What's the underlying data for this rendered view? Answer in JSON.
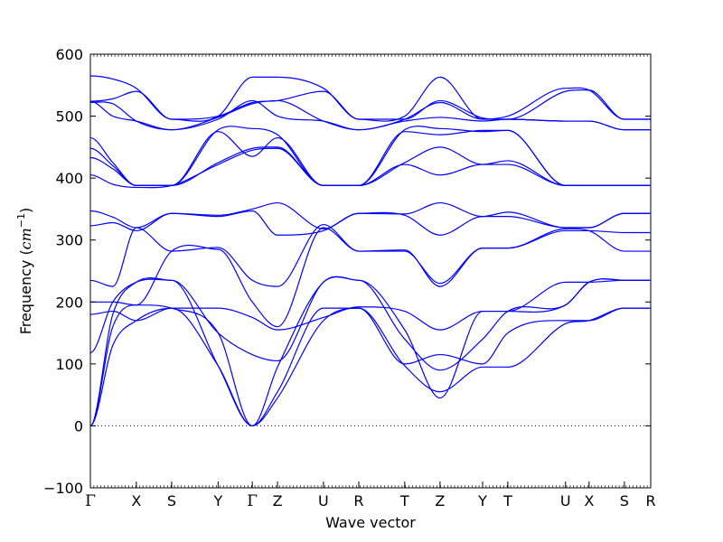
{
  "chart_data": {
    "type": "line",
    "title": "",
    "xlabel": "Wave vector",
    "ylabel_main": "Frequency (",
    "ylabel_unit": "cm",
    "ylabel_sup": "−1",
    "ylabel_close": ")",
    "ylim": [
      -100,
      600
    ],
    "yticks": [
      -100,
      0,
      100,
      200,
      300,
      400,
      500,
      600
    ],
    "xlim": [
      0,
      1
    ],
    "high_symmetry_points": [
      {
        "label": "Γ",
        "x": 0.0
      },
      {
        "label": "X",
        "x": 0.082
      },
      {
        "label": "S",
        "x": 0.145
      },
      {
        "label": "Y",
        "x": 0.228
      },
      {
        "label": "Γ",
        "x": 0.289
      },
      {
        "label": "Z",
        "x": 0.334
      },
      {
        "label": "U",
        "x": 0.416
      },
      {
        "label": "R",
        "x": 0.479
      },
      {
        "label": "T",
        "x": 0.561
      },
      {
        "label": "Z",
        "x": 0.624
      },
      {
        "label": "Y",
        "x": 0.7
      },
      {
        "label": "T",
        "x": 0.745
      },
      {
        "label": "U",
        "x": 0.848
      },
      {
        "label": "X",
        "x": 0.89
      },
      {
        "label": "S",
        "x": 0.953
      },
      {
        "label": "R",
        "x": 1.0
      }
    ],
    "zero_line": {
      "y": 0,
      "style": "dotted"
    },
    "line_color": "#0000ff",
    "series": [
      {
        "x": [
          0,
          0.04,
          0.082,
          0.145,
          0.228,
          0.289,
          0.334,
          0.416,
          0.479,
          0.561,
          0.624,
          0.7,
          0.745,
          0.848,
          0.89,
          0.953,
          1
        ],
        "y": [
          0,
          130,
          170,
          190,
          97,
          0,
          45,
          170,
          190,
          97,
          55,
          95,
          95,
          165,
          170,
          190,
          190
        ]
      },
      {
        "x": [
          0,
          0.04,
          0.082,
          0.145,
          0.228,
          0.289,
          0.334,
          0.416,
          0.479,
          0.561,
          0.624,
          0.7,
          0.745,
          0.848,
          0.89,
          0.953,
          1
        ],
        "y": [
          0,
          160,
          195,
          190,
          150,
          0,
          55,
          190,
          190,
          100,
          115,
          100,
          150,
          170,
          170,
          190,
          190
        ]
      },
      {
        "x": [
          0,
          0.04,
          0.082,
          0.145,
          0.228,
          0.289,
          0.334,
          0.416,
          0.479,
          0.561,
          0.624,
          0.7,
          0.745,
          0.848,
          0.89,
          0.953,
          1
        ],
        "y": [
          0,
          180,
          232,
          235,
          97,
          0,
          95,
          232,
          235,
          140,
          90,
          140,
          185,
          195,
          232,
          235,
          235
        ]
      },
      {
        "x": [
          0,
          0.04,
          0.082,
          0.145,
          0.228,
          0.289,
          0.334,
          0.416,
          0.479,
          0.561,
          0.624,
          0.7,
          0.745,
          0.848,
          0.89,
          0.953,
          1
        ],
        "y": [
          118,
          200,
          232,
          235,
          150,
          115,
          105,
          232,
          235,
          155,
          45,
          185,
          185,
          232,
          232,
          235,
          235
        ]
      },
      {
        "x": [
          0,
          0.04,
          0.082,
          0.145,
          0.228,
          0.289,
          0.334,
          0.416,
          0.479,
          0.561,
          0.624,
          0.7,
          0.745,
          0.848,
          0.89,
          0.953,
          1
        ],
        "y": [
          180,
          185,
          170,
          190,
          190,
          175,
          155,
          175,
          192,
          185,
          155,
          185,
          185,
          195,
          232,
          235,
          235
        ]
      },
      {
        "x": [
          0,
          0.04,
          0.082,
          0.145,
          0.228,
          0.289,
          0.334,
          0.416,
          0.479,
          0.561,
          0.624,
          0.7,
          0.745,
          0.848,
          0.89,
          0.953,
          1
        ],
        "y": [
          200,
          200,
          195,
          282,
          285,
          200,
          160,
          320,
          282,
          282,
          230,
          287,
          287,
          318,
          315,
          282,
          282
        ]
      },
      {
        "x": [
          0,
          0.04,
          0.082,
          0.145,
          0.228,
          0.289,
          0.334,
          0.416,
          0.479,
          0.561,
          0.624,
          0.7,
          0.745,
          0.848,
          0.89,
          0.953,
          1
        ],
        "y": [
          235,
          225,
          320,
          282,
          288,
          235,
          225,
          325,
          282,
          284,
          225,
          287,
          287,
          315,
          315,
          312,
          312
        ]
      },
      {
        "x": [
          0,
          0.04,
          0.082,
          0.145,
          0.228,
          0.289,
          0.334,
          0.416,
          0.479,
          0.561,
          0.624,
          0.7,
          0.745,
          0.848,
          0.89,
          0.953,
          1
        ],
        "y": [
          323,
          328,
          315,
          343,
          338,
          347,
          308,
          315,
          343,
          340,
          308,
          338,
          338,
          320,
          320,
          343,
          343
        ]
      },
      {
        "x": [
          0,
          0.04,
          0.082,
          0.145,
          0.228,
          0.289,
          0.334,
          0.416,
          0.479,
          0.561,
          0.624,
          0.7,
          0.745,
          0.848,
          0.89,
          0.953,
          1
        ],
        "y": [
          347,
          337,
          320,
          343,
          340,
          350,
          360,
          318,
          343,
          342,
          360,
          338,
          345,
          320,
          320,
          343,
          343
        ]
      },
      {
        "x": [
          0,
          0.04,
          0.082,
          0.145,
          0.228,
          0.289,
          0.334,
          0.416,
          0.479,
          0.561,
          0.624,
          0.7,
          0.745,
          0.848,
          0.89,
          0.953,
          1
        ],
        "y": [
          405,
          390,
          385,
          388,
          422,
          445,
          448,
          388,
          388,
          422,
          405,
          422,
          422,
          388,
          388,
          388,
          388
        ]
      },
      {
        "x": [
          0,
          0.04,
          0.082,
          0.145,
          0.228,
          0.289,
          0.334,
          0.416,
          0.479,
          0.561,
          0.624,
          0.7,
          0.745,
          0.848,
          0.89,
          0.953,
          1
        ],
        "y": [
          433,
          415,
          388,
          388,
          425,
          448,
          450,
          388,
          388,
          425,
          450,
          422,
          428,
          388,
          388,
          388,
          388
        ]
      },
      {
        "x": [
          0,
          0.04,
          0.082,
          0.145,
          0.228,
          0.289,
          0.334,
          0.416,
          0.479,
          0.561,
          0.624,
          0.7,
          0.745,
          0.848,
          0.89,
          0.953,
          1
        ],
        "y": [
          448,
          420,
          388,
          388,
          475,
          435,
          465,
          388,
          388,
          475,
          470,
          477,
          477,
          388,
          388,
          388,
          388
        ]
      },
      {
        "x": [
          0,
          0.04,
          0.082,
          0.145,
          0.228,
          0.289,
          0.334,
          0.416,
          0.479,
          0.561,
          0.624,
          0.7,
          0.745,
          0.848,
          0.89,
          0.953,
          1
        ],
        "y": [
          465,
          425,
          388,
          388,
          478,
          480,
          470,
          388,
          388,
          478,
          480,
          475,
          477,
          388,
          388,
          388,
          388
        ]
      },
      {
        "x": [
          0,
          0.04,
          0.082,
          0.145,
          0.228,
          0.289,
          0.334,
          0.416,
          0.479,
          0.561,
          0.624,
          0.7,
          0.745,
          0.848,
          0.89,
          0.953,
          1
        ],
        "y": [
          522,
          520,
          492,
          478,
          495,
          525,
          500,
          492,
          478,
          492,
          498,
          492,
          495,
          492,
          492,
          478,
          478
        ]
      },
      {
        "x": [
          0,
          0.04,
          0.082,
          0.145,
          0.228,
          0.289,
          0.334,
          0.416,
          0.479,
          0.561,
          0.624,
          0.7,
          0.745,
          0.848,
          0.89,
          0.953,
          1
        ],
        "y": [
          524,
          500,
          492,
          478,
          498,
          520,
          525,
          492,
          478,
          495,
          522,
          495,
          495,
          492,
          492,
          478,
          478
        ]
      },
      {
        "x": [
          0,
          0.04,
          0.082,
          0.145,
          0.228,
          0.289,
          0.334,
          0.416,
          0.479,
          0.561,
          0.624,
          0.7,
          0.745,
          0.848,
          0.89,
          0.953,
          1
        ],
        "y": [
          524,
          528,
          540,
          495,
          500,
          522,
          525,
          540,
          495,
          495,
          525,
          497,
          495,
          540,
          542,
          495,
          495
        ]
      },
      {
        "x": [
          0,
          0.04,
          0.082,
          0.145,
          0.228,
          0.289,
          0.334,
          0.416,
          0.479,
          0.561,
          0.624,
          0.7,
          0.745,
          0.848,
          0.89,
          0.953,
          1
        ],
        "y": [
          565,
          560,
          545,
          495,
          500,
          563,
          563,
          545,
          495,
          500,
          563,
          495,
          500,
          545,
          542,
          495,
          495
        ]
      }
    ]
  }
}
